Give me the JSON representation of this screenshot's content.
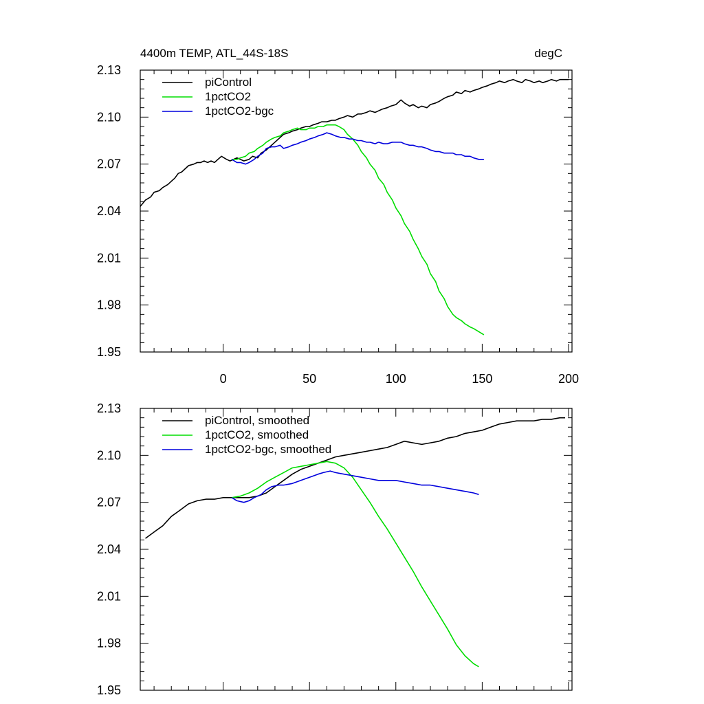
{
  "figure": {
    "title_left": "4400m TEMP, ATL_44S-18S",
    "title_right": "degC"
  },
  "chart_data": [
    {
      "type": "line",
      "title": "4400m TEMP, ATL_44S-18S",
      "units": "degC",
      "xlim": [
        -48,
        202
      ],
      "ylim": [
        1.95,
        2.13
      ],
      "x_ticks": [
        0,
        50,
        100,
        150,
        200
      ],
      "x_tick_labels": [
        "0",
        "50",
        "100",
        "150",
        "200"
      ],
      "y_ticks": [
        1.95,
        1.98,
        2.01,
        2.04,
        2.07,
        2.1,
        2.13
      ],
      "y_tick_labels": [
        "1.95",
        "1.98",
        "2.01",
        "2.04",
        "2.07",
        "2.10",
        "2.13"
      ],
      "legend_position": "top-left",
      "grid": false,
      "series": [
        {
          "name": "piControl",
          "color": "#000000",
          "x": [
            -48,
            -45,
            -42,
            -40,
            -37,
            -35,
            -32,
            -30,
            -28,
            -26,
            -24,
            -22,
            -20,
            -17,
            -15,
            -13,
            -11,
            -9,
            -7,
            -5,
            -3,
            -1,
            2,
            4,
            6,
            8,
            10,
            12,
            15,
            17,
            20,
            22,
            25,
            28,
            30,
            33,
            35,
            38,
            40,
            43,
            45,
            48,
            50,
            52,
            55,
            57,
            60,
            63,
            65,
            67,
            70,
            72,
            75,
            78,
            80,
            83,
            85,
            88,
            90,
            92,
            95,
            97,
            100,
            103,
            105,
            108,
            110,
            113,
            115,
            118,
            120,
            123,
            125,
            128,
            130,
            133,
            135,
            138,
            140,
            143,
            145,
            148,
            150,
            153,
            155,
            158,
            160,
            163,
            165,
            168,
            170,
            173,
            175,
            178,
            180,
            183,
            185,
            188,
            190,
            193,
            195,
            198,
            200
          ],
          "y": [
            2.043,
            2.047,
            2.049,
            2.052,
            2.053,
            2.055,
            2.057,
            2.059,
            2.061,
            2.064,
            2.065,
            2.067,
            2.069,
            2.07,
            2.071,
            2.071,
            2.072,
            2.071,
            2.072,
            2.071,
            2.073,
            2.075,
            2.073,
            2.072,
            2.073,
            2.074,
            2.073,
            2.072,
            2.073,
            2.075,
            2.074,
            2.077,
            2.079,
            2.082,
            2.084,
            2.087,
            2.089,
            2.09,
            2.091,
            2.092,
            2.093,
            2.094,
            2.094,
            2.095,
            2.096,
            2.097,
            2.097,
            2.098,
            2.098,
            2.099,
            2.1,
            2.101,
            2.1,
            2.102,
            2.102,
            2.103,
            2.104,
            2.103,
            2.104,
            2.105,
            2.106,
            2.107,
            2.108,
            2.111,
            2.109,
            2.107,
            2.108,
            2.106,
            2.107,
            2.106,
            2.108,
            2.109,
            2.11,
            2.112,
            2.113,
            2.114,
            2.116,
            2.115,
            2.117,
            2.116,
            2.117,
            2.118,
            2.119,
            2.12,
            2.121,
            2.122,
            2.123,
            2.122,
            2.123,
            2.124,
            2.123,
            2.122,
            2.124,
            2.123,
            2.122,
            2.123,
            2.122,
            2.123,
            2.124,
            2.123,
            2.124,
            2.124,
            2.124
          ]
        },
        {
          "name": "1pctCO2",
          "color": "#00dd00",
          "x": [
            5,
            8,
            10,
            13,
            15,
            18,
            20,
            23,
            25,
            28,
            30,
            33,
            35,
            38,
            40,
            43,
            45,
            48,
            50,
            53,
            55,
            58,
            60,
            63,
            65,
            67,
            70,
            72,
            75,
            78,
            80,
            83,
            85,
            88,
            90,
            93,
            95,
            98,
            100,
            103,
            105,
            108,
            110,
            113,
            115,
            118,
            120,
            123,
            125,
            128,
            130,
            133,
            135,
            138,
            140,
            143,
            145,
            148,
            151
          ],
          "y": [
            2.073,
            2.073,
            2.074,
            2.075,
            2.077,
            2.078,
            2.08,
            2.082,
            2.084,
            2.086,
            2.087,
            2.088,
            2.09,
            2.091,
            2.092,
            2.093,
            2.092,
            2.092,
            2.093,
            2.093,
            2.094,
            2.094,
            2.095,
            2.095,
            2.095,
            2.094,
            2.092,
            2.089,
            2.086,
            2.082,
            2.078,
            2.074,
            2.07,
            2.066,
            2.061,
            2.057,
            2.052,
            2.047,
            2.042,
            2.037,
            2.032,
            2.027,
            2.022,
            2.016,
            2.011,
            2.006,
            2.0,
            1.995,
            1.989,
            1.984,
            1.979,
            1.974,
            1.972,
            1.97,
            1.968,
            1.966,
            1.965,
            1.963,
            1.961
          ]
        },
        {
          "name": "1pctCO2-bgc",
          "color": "#0000dd",
          "x": [
            5,
            8,
            10,
            13,
            15,
            18,
            20,
            23,
            25,
            28,
            30,
            33,
            35,
            38,
            40,
            43,
            45,
            48,
            50,
            53,
            55,
            58,
            60,
            63,
            65,
            68,
            70,
            73,
            75,
            78,
            80,
            83,
            85,
            88,
            90,
            93,
            95,
            98,
            100,
            103,
            105,
            108,
            110,
            113,
            115,
            118,
            120,
            123,
            125,
            128,
            130,
            133,
            135,
            138,
            140,
            143,
            145,
            148,
            151
          ],
          "y": [
            2.073,
            2.071,
            2.071,
            2.07,
            2.071,
            2.073,
            2.075,
            2.077,
            2.08,
            2.081,
            2.081,
            2.082,
            2.08,
            2.081,
            2.082,
            2.083,
            2.084,
            2.085,
            2.086,
            2.087,
            2.088,
            2.089,
            2.09,
            2.089,
            2.088,
            2.087,
            2.087,
            2.086,
            2.086,
            2.085,
            2.085,
            2.084,
            2.084,
            2.083,
            2.084,
            2.083,
            2.083,
            2.084,
            2.084,
            2.084,
            2.083,
            2.082,
            2.082,
            2.081,
            2.081,
            2.08,
            2.079,
            2.078,
            2.078,
            2.077,
            2.077,
            2.077,
            2.076,
            2.076,
            2.075,
            2.075,
            2.074,
            2.073,
            2.073
          ]
        }
      ]
    },
    {
      "type": "line",
      "xlim": [
        -48,
        202
      ],
      "ylim": [
        1.95,
        2.13
      ],
      "x_ticks": [
        0,
        50,
        100,
        150,
        200
      ],
      "y_ticks": [
        1.95,
        1.98,
        2.01,
        2.04,
        2.07,
        2.1,
        2.13
      ],
      "y_tick_labels": [
        "1.95",
        "1.98",
        "2.01",
        "2.04",
        "2.07",
        "2.10",
        "2.13"
      ],
      "legend_position": "top-left",
      "grid": false,
      "series": [
        {
          "name": "piControl, smoothed",
          "color": "#000000",
          "x": [
            -45,
            -40,
            -35,
            -30,
            -25,
            -20,
            -15,
            -10,
            -5,
            0,
            5,
            10,
            15,
            20,
            25,
            30,
            35,
            40,
            45,
            50,
            55,
            60,
            65,
            70,
            75,
            80,
            85,
            90,
            95,
            100,
            105,
            110,
            115,
            120,
            125,
            130,
            135,
            140,
            145,
            150,
            155,
            160,
            165,
            170,
            175,
            180,
            185,
            190,
            195,
            198
          ],
          "y": [
            2.047,
            2.051,
            2.055,
            2.061,
            2.065,
            2.069,
            2.071,
            2.072,
            2.072,
            2.073,
            2.073,
            2.073,
            2.073,
            2.074,
            2.076,
            2.08,
            2.084,
            2.088,
            2.091,
            2.093,
            2.095,
            2.097,
            2.099,
            2.1,
            2.101,
            2.102,
            2.103,
            2.104,
            2.105,
            2.107,
            2.109,
            2.108,
            2.107,
            2.108,
            2.109,
            2.111,
            2.112,
            2.114,
            2.115,
            2.116,
            2.118,
            2.12,
            2.121,
            2.122,
            2.122,
            2.122,
            2.123,
            2.123,
            2.124,
            2.124
          ]
        },
        {
          "name": "1pctCO2, smoothed",
          "color": "#00dd00",
          "x": [
            5,
            10,
            15,
            20,
            25,
            30,
            35,
            40,
            45,
            50,
            55,
            60,
            65,
            70,
            75,
            80,
            85,
            90,
            95,
            100,
            105,
            110,
            115,
            120,
            125,
            130,
            135,
            140,
            145,
            148
          ],
          "y": [
            2.073,
            2.074,
            2.076,
            2.079,
            2.083,
            2.086,
            2.089,
            2.092,
            2.093,
            2.094,
            2.095,
            2.096,
            2.095,
            2.092,
            2.086,
            2.078,
            2.07,
            2.061,
            2.053,
            2.044,
            2.035,
            2.026,
            2.016,
            2.007,
            1.998,
            1.989,
            1.979,
            1.972,
            1.967,
            1.965
          ]
        },
        {
          "name": "1pctCO2-bgc, smoothed",
          "color": "#0000dd",
          "x": [
            5,
            8,
            12,
            15,
            18,
            22,
            25,
            28,
            32,
            35,
            40,
            45,
            50,
            55,
            58,
            62,
            65,
            70,
            75,
            80,
            85,
            90,
            95,
            100,
            105,
            110,
            115,
            120,
            125,
            130,
            135,
            140,
            145,
            148
          ],
          "y": [
            2.073,
            2.071,
            2.07,
            2.071,
            2.073,
            2.075,
            2.078,
            2.08,
            2.081,
            2.081,
            2.082,
            2.084,
            2.086,
            2.088,
            2.089,
            2.09,
            2.089,
            2.088,
            2.087,
            2.086,
            2.085,
            2.084,
            2.084,
            2.084,
            2.083,
            2.082,
            2.081,
            2.081,
            2.08,
            2.079,
            2.078,
            2.077,
            2.076,
            2.075
          ]
        }
      ]
    }
  ]
}
